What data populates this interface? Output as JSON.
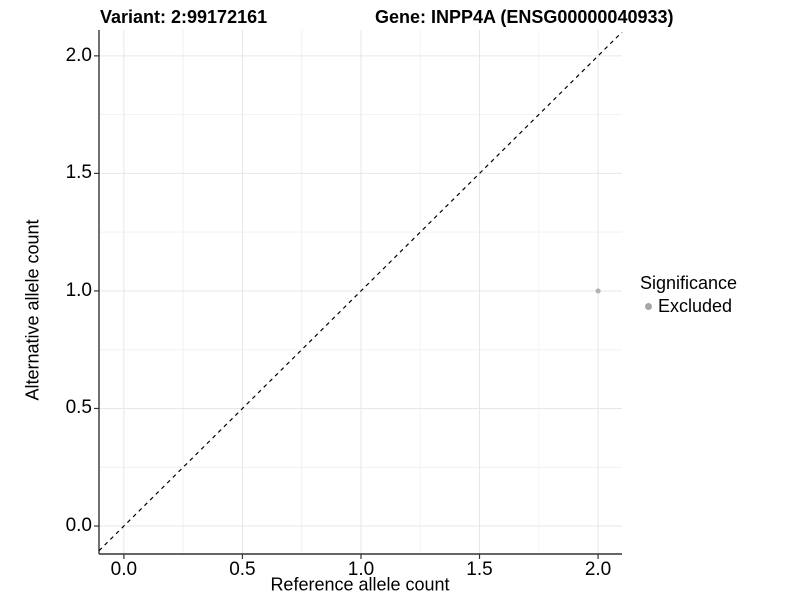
{
  "titles": {
    "variant": "Variant: 2:99172161",
    "gene": "Gene: INPP4A (ENSG00000040933)"
  },
  "axes": {
    "x": {
      "label": "Reference allele count",
      "tick_labels": [
        "0.0",
        "0.5",
        "1.0",
        "1.5",
        "2.0"
      ]
    },
    "y": {
      "label": "Alternative allele count",
      "tick_labels": [
        "0.0",
        "0.5",
        "1.0",
        "1.5",
        "2.0"
      ]
    }
  },
  "legend": {
    "title": "Significance",
    "items": [
      {
        "label": "Excluded",
        "color": "#a6a6a6"
      }
    ]
  },
  "chart_data": {
    "type": "scatter",
    "title": "Variant: 2:99172161 | Gene: INPP4A (ENSG00000040933)",
    "xlabel": "Reference allele count",
    "ylabel": "Alternative allele count",
    "x_ticks": [
      0,
      0.5,
      1,
      1.5,
      2
    ],
    "y_ticks": [
      0,
      0.5,
      1,
      1.5,
      2
    ],
    "x_minor_ticks": [
      0.25,
      0.75,
      1.25,
      1.75
    ],
    "y_minor_ticks": [
      0.25,
      0.75,
      1.25,
      1.75
    ],
    "xlim": [
      -0.105,
      2.101
    ],
    "ylim": [
      -0.119,
      2.11
    ],
    "grid": "major+minor",
    "legend_position": "right",
    "series": [
      {
        "name": "Excluded",
        "color": "#b3b3b3",
        "points": [
          {
            "x": 2.0,
            "y": 1.0
          }
        ]
      }
    ],
    "reference_line": {
      "kind": "abline",
      "slope": 1,
      "intercept": 0,
      "style": "dashed",
      "color": "#000000"
    }
  },
  "colors": {
    "grid_major": "#e7e7e7",
    "grid_minor": "#f2f2f2",
    "axis_line": "#333333",
    "point": "#b3b3b3",
    "legend_dot": "#a6a6a6",
    "text": "#000000"
  }
}
